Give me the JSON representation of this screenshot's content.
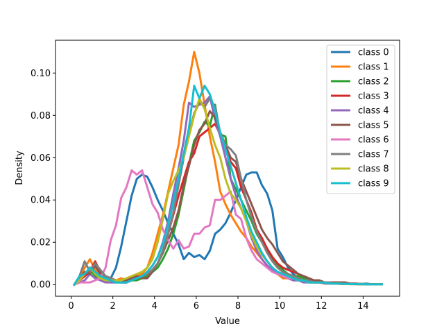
{
  "chart_data": {
    "type": "line",
    "title": "",
    "xlabel": "Value",
    "ylabel": "Density",
    "xlim": [
      -0.75,
      15.75
    ],
    "ylim": [
      -0.0055,
      0.1155
    ],
    "xticks": [
      0,
      2,
      4,
      6,
      8,
      10,
      12,
      14
    ],
    "xtick_labels": [
      "0",
      "2",
      "4",
      "6",
      "8",
      "10",
      "12",
      "14"
    ],
    "yticks": [
      0.0,
      0.02,
      0.04,
      0.06,
      0.08,
      0.1
    ],
    "ytick_labels": [
      "0.00",
      "0.02",
      "0.04",
      "0.06",
      "0.08",
      "0.10"
    ],
    "grid": false,
    "legend_position": "top-right",
    "x": [
      0.15,
      0.4,
      0.65,
      0.9,
      1.15,
      1.4,
      1.65,
      1.9,
      2.15,
      2.4,
      2.65,
      2.9,
      3.15,
      3.4,
      3.65,
      3.9,
      4.15,
      4.4,
      4.65,
      4.9,
      5.15,
      5.4,
      5.65,
      5.9,
      6.15,
      6.4,
      6.65,
      6.9,
      7.15,
      7.4,
      7.65,
      7.9,
      8.15,
      8.4,
      8.65,
      8.9,
      9.15,
      9.4,
      9.65,
      9.9,
      10.15,
      10.4,
      10.65,
      10.9,
      11.15,
      11.4,
      11.65,
      11.9,
      12.15,
      12.4,
      12.65,
      12.9,
      13.15,
      13.4,
      13.65,
      13.9,
      14.15,
      14.4,
      14.65,
      14.9
    ],
    "series": [
      {
        "name": "class 0",
        "color": "#1f77b4",
        "values": [
          0.0,
          0.002,
          0.004,
          0.008,
          0.006,
          0.003,
          0.002,
          0.003,
          0.008,
          0.018,
          0.03,
          0.042,
          0.05,
          0.052,
          0.051,
          0.046,
          0.04,
          0.035,
          0.029,
          0.024,
          0.019,
          0.012,
          0.015,
          0.013,
          0.014,
          0.012,
          0.016,
          0.024,
          0.026,
          0.029,
          0.034,
          0.04,
          0.046,
          0.052,
          0.053,
          0.053,
          0.047,
          0.043,
          0.035,
          0.017,
          0.013,
          0.008,
          0.005,
          0.003,
          0.002,
          0.002,
          0.001,
          0.001,
          0.001,
          0.0005,
          0.0005,
          0.0005,
          0.0003,
          0.0003,
          0.0003,
          0.0002,
          0.0005,
          0.0002,
          0.0001,
          0.0001
        ]
      },
      {
        "name": "class 1",
        "color": "#ff7f0e",
        "values": [
          0.0,
          0.003,
          0.008,
          0.012,
          0.007,
          0.004,
          0.003,
          0.002,
          0.002,
          0.003,
          0.002,
          0.003,
          0.004,
          0.005,
          0.008,
          0.015,
          0.024,
          0.033,
          0.044,
          0.055,
          0.066,
          0.085,
          0.096,
          0.11,
          0.1,
          0.085,
          0.07,
          0.058,
          0.044,
          0.038,
          0.033,
          0.029,
          0.025,
          0.022,
          0.018,
          0.015,
          0.012,
          0.009,
          0.007,
          0.005,
          0.003,
          0.003,
          0.002,
          0.002,
          0.002,
          0.001,
          0.001,
          0.001,
          0.0005,
          0.0005,
          0.0005,
          0.0003,
          0.0003,
          0.0002,
          0.0002,
          0.0001,
          0.0001,
          0.0001,
          0.0001,
          0.0001
        ]
      },
      {
        "name": "class 2",
        "color": "#2ca02c",
        "values": [
          0.0,
          0.002,
          0.004,
          0.007,
          0.004,
          0.003,
          0.002,
          0.001,
          0.001,
          0.001,
          0.001,
          0.002,
          0.002,
          0.003,
          0.004,
          0.006,
          0.008,
          0.012,
          0.017,
          0.024,
          0.033,
          0.045,
          0.057,
          0.068,
          0.072,
          0.077,
          0.075,
          0.085,
          0.071,
          0.07,
          0.05,
          0.045,
          0.04,
          0.035,
          0.03,
          0.024,
          0.02,
          0.016,
          0.012,
          0.009,
          0.007,
          0.005,
          0.004,
          0.004,
          0.003,
          0.002,
          0.002,
          0.002,
          0.001,
          0.001,
          0.001,
          0.0005,
          0.0005,
          0.0005,
          0.0003,
          0.0003,
          0.0002,
          0.0002,
          0.0001,
          0.0001
        ]
      },
      {
        "name": "class 3",
        "color": "#d62728",
        "values": [
          0.0,
          0.002,
          0.004,
          0.006,
          0.011,
          0.006,
          0.004,
          0.003,
          0.002,
          0.001,
          0.001,
          0.002,
          0.003,
          0.004,
          0.005,
          0.007,
          0.01,
          0.016,
          0.024,
          0.033,
          0.042,
          0.05,
          0.058,
          0.062,
          0.07,
          0.072,
          0.074,
          0.076,
          0.071,
          0.065,
          0.058,
          0.055,
          0.046,
          0.04,
          0.034,
          0.026,
          0.022,
          0.017,
          0.013,
          0.01,
          0.008,
          0.007,
          0.006,
          0.005,
          0.004,
          0.003,
          0.002,
          0.002,
          0.001,
          0.001,
          0.001,
          0.001,
          0.001,
          0.0005,
          0.0005,
          0.0003,
          0.0002,
          0.0002,
          0.0001,
          0.0001
        ]
      },
      {
        "name": "class 4",
        "color": "#9467bd",
        "values": [
          0.0,
          0.001,
          0.002,
          0.005,
          0.003,
          0.002,
          0.001,
          0.001,
          0.001,
          0.001,
          0.001,
          0.002,
          0.003,
          0.004,
          0.006,
          0.009,
          0.013,
          0.02,
          0.03,
          0.043,
          0.055,
          0.068,
          0.086,
          0.084,
          0.085,
          0.086,
          0.089,
          0.078,
          0.07,
          0.06,
          0.05,
          0.042,
          0.036,
          0.03,
          0.022,
          0.016,
          0.012,
          0.009,
          0.007,
          0.005,
          0.004,
          0.003,
          0.002,
          0.002,
          0.001,
          0.001,
          0.001,
          0.001,
          0.0005,
          0.0005,
          0.0005,
          0.0003,
          0.0003,
          0.0002,
          0.0002,
          0.0001,
          0.0001,
          0.0001,
          0.0001,
          0.0001
        ]
      },
      {
        "name": "class 5",
        "color": "#8c564b",
        "values": [
          0.0,
          0.003,
          0.006,
          0.005,
          0.009,
          0.005,
          0.004,
          0.003,
          0.002,
          0.001,
          0.002,
          0.003,
          0.004,
          0.003,
          0.003,
          0.006,
          0.01,
          0.015,
          0.021,
          0.027,
          0.035,
          0.047,
          0.056,
          0.066,
          0.073,
          0.076,
          0.082,
          0.079,
          0.072,
          0.066,
          0.06,
          0.058,
          0.05,
          0.044,
          0.038,
          0.032,
          0.026,
          0.022,
          0.019,
          0.015,
          0.011,
          0.009,
          0.007,
          0.005,
          0.004,
          0.003,
          0.002,
          0.002,
          0.001,
          0.001,
          0.001,
          0.001,
          0.001,
          0.0005,
          0.0005,
          0.0003,
          0.0002,
          0.0002,
          0.0001,
          0.0001
        ]
      },
      {
        "name": "class 6",
        "color": "#e377c2",
        "values": [
          0.0,
          0.001,
          0.001,
          0.001,
          0.002,
          0.003,
          0.008,
          0.021,
          0.028,
          0.041,
          0.046,
          0.054,
          0.052,
          0.054,
          0.046,
          0.038,
          0.034,
          0.026,
          0.021,
          0.017,
          0.021,
          0.017,
          0.018,
          0.024,
          0.024,
          0.027,
          0.028,
          0.04,
          0.04,
          0.042,
          0.044,
          0.033,
          0.031,
          0.022,
          0.016,
          0.012,
          0.01,
          0.008,
          0.006,
          0.005,
          0.004,
          0.003,
          0.003,
          0.002,
          0.002,
          0.001,
          0.001,
          0.001,
          0.001,
          0.0005,
          0.0005,
          0.0005,
          0.0003,
          0.0003,
          0.0002,
          0.0002,
          0.0001,
          0.0001,
          0.0001,
          0.0001
        ]
      },
      {
        "name": "class 7",
        "color": "#7f7f7f",
        "values": [
          0.0,
          0.004,
          0.011,
          0.006,
          0.01,
          0.007,
          0.004,
          0.003,
          0.002,
          0.001,
          0.001,
          0.002,
          0.003,
          0.004,
          0.005,
          0.007,
          0.01,
          0.016,
          0.024,
          0.034,
          0.047,
          0.06,
          0.071,
          0.081,
          0.086,
          0.084,
          0.088,
          0.084,
          0.071,
          0.066,
          0.064,
          0.061,
          0.05,
          0.04,
          0.032,
          0.025,
          0.02,
          0.015,
          0.011,
          0.008,
          0.006,
          0.005,
          0.004,
          0.003,
          0.002,
          0.002,
          0.001,
          0.001,
          0.001,
          0.001,
          0.0005,
          0.0005,
          0.0005,
          0.0003,
          0.0003,
          0.0002,
          0.0002,
          0.0001,
          0.0001,
          0.0001
        ]
      },
      {
        "name": "class 8",
        "color": "#bcbd22",
        "values": [
          0.0,
          0.002,
          0.005,
          0.008,
          0.005,
          0.003,
          0.002,
          0.002,
          0.002,
          0.002,
          0.003,
          0.004,
          0.005,
          0.006,
          0.008,
          0.012,
          0.02,
          0.031,
          0.043,
          0.049,
          0.054,
          0.06,
          0.07,
          0.08,
          0.088,
          0.083,
          0.074,
          0.066,
          0.06,
          0.05,
          0.043,
          0.04,
          0.036,
          0.03,
          0.023,
          0.018,
          0.014,
          0.011,
          0.008,
          0.006,
          0.005,
          0.004,
          0.003,
          0.002,
          0.002,
          0.001,
          0.001,
          0.001,
          0.001,
          0.0005,
          0.0005,
          0.0005,
          0.0003,
          0.0003,
          0.0002,
          0.0002,
          0.0001,
          0.0001,
          0.0001,
          0.0001
        ]
      },
      {
        "name": "class 9",
        "color": "#17becf",
        "values": [
          0.0,
          0.004,
          0.005,
          0.008,
          0.006,
          0.004,
          0.003,
          0.002,
          0.001,
          0.001,
          0.001,
          0.002,
          0.003,
          0.004,
          0.006,
          0.009,
          0.013,
          0.019,
          0.028,
          0.039,
          0.05,
          0.062,
          0.074,
          0.094,
          0.088,
          0.094,
          0.09,
          0.082,
          0.072,
          0.064,
          0.056,
          0.048,
          0.04,
          0.032,
          0.025,
          0.02,
          0.015,
          0.011,
          0.008,
          0.006,
          0.005,
          0.004,
          0.003,
          0.002,
          0.002,
          0.001,
          0.001,
          0.001,
          0.001,
          0.0005,
          0.0005,
          0.0005,
          0.0003,
          0.0003,
          0.0002,
          0.0002,
          0.0001,
          0.0001,
          0.0001,
          0.0001
        ]
      }
    ]
  }
}
